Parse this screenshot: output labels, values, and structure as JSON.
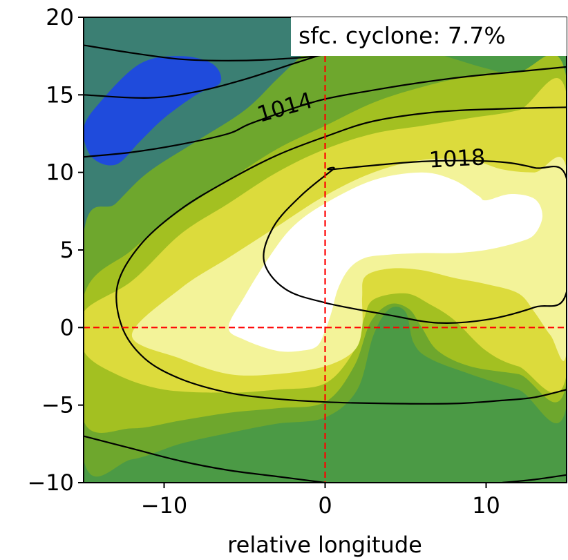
{
  "chart_data": {
    "type": "heatmap",
    "title": "",
    "xlabel": "relative longitude",
    "ylabel": "",
    "xlim": [
      -15,
      15
    ],
    "ylim": [
      -10,
      20
    ],
    "x_ticks": [
      -10,
      0,
      10
    ],
    "x_tick_labels": [
      "−10",
      "0",
      "10"
    ],
    "y_ticks": [
      -10,
      -5,
      0,
      5,
      10,
      15,
      20
    ],
    "y_tick_labels": [
      "−10",
      "−5",
      "0",
      "5",
      "10",
      "15",
      "20"
    ],
    "annotation": "sfc. cyclone: 7.7%",
    "reference_lines": {
      "x": 0,
      "y": 0,
      "color": "#ff0000",
      "style": "dashed"
    },
    "filled_contours": {
      "colors": [
        "#4b9a45",
        "#6aa72c",
        "#9cbf22",
        "#d8d83c",
        "#f2f29a",
        "#ffffff",
        "#2b7f75",
        "#1f48dc"
      ],
      "regions": [
        {
          "level": "darkgreen",
          "color": "#4b9a45",
          "points": [
            [
              -15,
              -10
            ],
            [
              15,
              -10
            ],
            [
              15,
              20
            ],
            [
              -15,
              20
            ]
          ]
        },
        {
          "level": "teal",
          "color": "#3b7f73",
          "points": [
            [
              -15,
              20
            ],
            [
              -15,
              6
            ],
            [
              -13,
              6.5
            ],
            [
              -11,
              9
            ],
            [
              -8,
              11.5
            ],
            [
              -5,
              14
            ],
            [
              -2,
              16.5
            ],
            [
              1,
              19
            ],
            [
              2.5,
              20
            ]
          ]
        },
        {
          "level": "blue",
          "color": "#1f4bdc",
          "points": [
            [
              -15,
              12.8
            ],
            [
              -14.5,
              11
            ],
            [
              -13,
              10.5
            ],
            [
              -11.5,
              12
            ],
            [
              -10,
              13.5
            ],
            [
              -8,
              15
            ],
            [
              -6.5,
              15.8
            ],
            [
              -7,
              17
            ],
            [
              -9,
              17.5
            ],
            [
              -11.5,
              17
            ],
            [
              -14,
              14.5
            ]
          ]
        },
        {
          "level": "green",
          "color": "#6ea72d",
          "points": [
            [
              -15,
              -8.5
            ],
            [
              -12,
              -8.5
            ],
            [
              -9,
              -7.5
            ],
            [
              -6,
              -6.8
            ],
            [
              -3,
              -6.2
            ],
            [
              0,
              -5.8
            ],
            [
              2,
              -4
            ],
            [
              3,
              -0.5
            ],
            [
              4,
              1.2
            ],
            [
              5,
              1
            ],
            [
              5.5,
              -1
            ],
            [
              6.5,
              -2
            ],
            [
              9,
              -3
            ],
            [
              12,
              -4
            ],
            [
              15,
              -5
            ],
            [
              15,
              14
            ],
            [
              12,
              16
            ],
            [
              9,
              17
            ],
            [
              6,
              18
            ],
            [
              4,
              19
            ],
            [
              3,
              20
            ],
            [
              1,
              20
            ],
            [
              -1,
              18
            ],
            [
              -3,
              16
            ],
            [
              -5,
              14
            ],
            [
              -8,
              12
            ],
            [
              -11,
              10
            ],
            [
              -13,
              8
            ],
            [
              -15,
              6
            ]
          ]
        },
        {
          "level": "olive",
          "color": "#a3c021",
          "points": [
            [
              -15,
              -6
            ],
            [
              -12,
              -6.5
            ],
            [
              -9,
              -6
            ],
            [
              -6,
              -5.5
            ],
            [
              -3,
              -5.2
            ],
            [
              0,
              -4.8
            ],
            [
              1.8,
              -2.5
            ],
            [
              2.8,
              0.3
            ],
            [
              4,
              1.5
            ],
            [
              5.2,
              1.2
            ],
            [
              6,
              0
            ],
            [
              7,
              -1.5
            ],
            [
              9,
              -2.5
            ],
            [
              12,
              -3
            ],
            [
              15,
              -3.5
            ],
            [
              15,
              16
            ],
            [
              12,
              16.5
            ],
            [
              9,
              16.2
            ],
            [
              6,
              15.5
            ],
            [
              3,
              14.5
            ],
            [
              0,
              13
            ],
            [
              -3,
              11.5
            ],
            [
              -6,
              9.5
            ],
            [
              -9,
              7.5
            ],
            [
              -12,
              5
            ],
            [
              -15,
              2
            ]
          ]
        },
        {
          "level": "yellow",
          "color": "#dcdb3c",
          "points": [
            [
              -15,
              -1.5
            ],
            [
              -13,
              -3
            ],
            [
              -10,
              -4
            ],
            [
              -6,
              -4.2
            ],
            [
              -3,
              -4
            ],
            [
              0,
              -3.6
            ],
            [
              1.8,
              -1.5
            ],
            [
              2.4,
              0.5
            ],
            [
              3,
              1.8
            ],
            [
              5,
              2.2
            ],
            [
              6.5,
              1.5
            ],
            [
              8,
              0.5
            ],
            [
              10,
              -1.5
            ],
            [
              12,
              -2.5
            ],
            [
              15,
              -3
            ],
            [
              15,
              15
            ],
            [
              12,
              14
            ],
            [
              9,
              13.5
            ],
            [
              6,
              13
            ],
            [
              3,
              12.5
            ],
            [
              0,
              11.5
            ],
            [
              -3,
              10
            ],
            [
              -6,
              8
            ],
            [
              -9,
              6
            ],
            [
              -12,
              3
            ],
            [
              -15,
              1
            ]
          ]
        },
        {
          "level": "paleyellow",
          "color": "#f3f399",
          "points": [
            [
              -12,
              -0.5
            ],
            [
              -9,
              -2
            ],
            [
              -6,
              -3
            ],
            [
              -3,
              -3
            ],
            [
              0,
              -2.5
            ],
            [
              1.8,
              -1.5
            ],
            [
              2.3,
              0
            ],
            [
              2.3,
              2
            ],
            [
              2.5,
              3.3
            ],
            [
              4,
              3.8
            ],
            [
              6,
              3.7
            ],
            [
              8,
              3.2
            ],
            [
              10,
              2.8
            ],
            [
              12,
              2.2
            ],
            [
              13,
              1
            ],
            [
              14,
              -0.5
            ],
            [
              15,
              -1.5
            ],
            [
              15,
              10.2
            ],
            [
              13,
              10
            ],
            [
              11,
              10.2
            ],
            [
              9,
              10.8
            ],
            [
              6,
              10.8
            ],
            [
              3,
              10
            ],
            [
              0,
              8.5
            ],
            [
              -3,
              6.5
            ],
            [
              -6,
              4.5
            ],
            [
              -9,
              2.5
            ]
          ]
        },
        {
          "level": "white",
          "color": "#ffffff",
          "points": [
            [
              -6,
              0
            ],
            [
              -5,
              -0.8
            ],
            [
              -3,
              -1.5
            ],
            [
              -1.5,
              -1.5
            ],
            [
              -0.5,
              -1.2
            ],
            [
              0,
              -0.2
            ],
            [
              0.4,
              1
            ],
            [
              0.8,
              2.5
            ],
            [
              1.5,
              3.8
            ],
            [
              2.5,
              4.5
            ],
            [
              4,
              4.7
            ],
            [
              6,
              4.8
            ],
            [
              8,
              4.8
            ],
            [
              10,
              5
            ],
            [
              12,
              5.5
            ],
            [
              13,
              6
            ],
            [
              13.5,
              7.2
            ],
            [
              13,
              8.3
            ],
            [
              11.5,
              8.6
            ],
            [
              10,
              8.2
            ],
            [
              9.5,
              8.5
            ],
            [
              8,
              9.5
            ],
            [
              6,
              10
            ],
            [
              3,
              9.5
            ],
            [
              0,
              8
            ],
            [
              -2,
              6.5
            ],
            [
              -3.5,
              4.5
            ],
            [
              -5,
              2
            ]
          ]
        }
      ]
    },
    "contour_lines": [
      {
        "label": "1014",
        "label_at": [
          -2.5,
          14.2
        ],
        "points": [
          [
            -15,
            11
          ],
          [
            -12,
            11.3
          ],
          [
            -9,
            11.8
          ],
          [
            -6,
            12.5
          ],
          [
            -4.5,
            13.2
          ],
          [
            -0.5,
            14.6
          ],
          [
            3,
            15.3
          ],
          [
            6,
            15.8
          ],
          [
            9,
            16.2
          ],
          [
            12,
            16.5
          ],
          [
            15,
            16.8
          ]
        ]
      },
      {
        "label": "1018",
        "label_at": [
          8.2,
          10.9
        ],
        "points": [
          [
            0.5,
            10.2
          ],
          [
            6,
            10.7
          ],
          [
            10.5,
            10.7
          ],
          [
            13,
            10.3
          ],
          [
            15,
            9.6
          ],
          [
            15,
            2.3
          ],
          [
            13,
            1.3
          ],
          [
            10,
            0.5
          ],
          [
            7,
            0.3
          ],
          [
            4,
            0.8
          ],
          [
            0,
            1.6
          ],
          [
            -2.5,
            2.5
          ],
          [
            -3.8,
            4.3
          ],
          [
            -3.2,
            6.5
          ],
          [
            -1.5,
            8.5
          ],
          [
            0.5,
            10.2
          ]
        ]
      },
      {
        "label": "",
        "points": [
          [
            -15,
            15
          ],
          [
            -11,
            14.8
          ],
          [
            -8,
            15.2
          ],
          [
            -5,
            16
          ],
          [
            -2,
            17
          ],
          [
            1,
            18
          ],
          [
            4,
            19
          ],
          [
            7,
            20
          ]
        ]
      },
      {
        "label": "",
        "points": [
          [
            -15,
            18.2
          ],
          [
            -12,
            17.7
          ],
          [
            -9,
            17.3
          ],
          [
            -6,
            17.2
          ],
          [
            -3,
            17.3
          ],
          [
            0,
            17.6
          ],
          [
            3,
            18.5
          ],
          [
            5,
            19.4
          ],
          [
            6,
            20
          ]
        ]
      },
      {
        "label": "",
        "points": [
          [
            15,
            14.2
          ],
          [
            11,
            14.1
          ],
          [
            7,
            13.9
          ],
          [
            3,
            13.3
          ],
          [
            0,
            12.3
          ],
          [
            -3,
            11.1
          ],
          [
            -6,
            9.5
          ],
          [
            -9,
            7.6
          ],
          [
            -11.5,
            5.3
          ],
          [
            -12.9,
            2.7
          ],
          [
            -12.6,
            0
          ],
          [
            -11.2,
            -2
          ],
          [
            -9,
            -3.3
          ],
          [
            -6,
            -4.2
          ],
          [
            -3,
            -4.6
          ],
          [
            0,
            -4.8
          ],
          [
            4,
            -4.9
          ],
          [
            8,
            -4.9
          ],
          [
            11,
            -4.7
          ],
          [
            13,
            -4.5
          ],
          [
            15,
            -4
          ]
        ]
      },
      {
        "label": "",
        "points": [
          [
            -15,
            -7
          ],
          [
            -12,
            -7.8
          ],
          [
            -9,
            -8.6
          ],
          [
            -6,
            -9.2
          ],
          [
            -3,
            -9.6
          ],
          [
            0,
            -10
          ]
        ]
      },
      {
        "label": "",
        "points": [
          [
            11,
            -10
          ],
          [
            13,
            -9.8
          ],
          [
            15,
            -9.5
          ]
        ]
      }
    ]
  }
}
